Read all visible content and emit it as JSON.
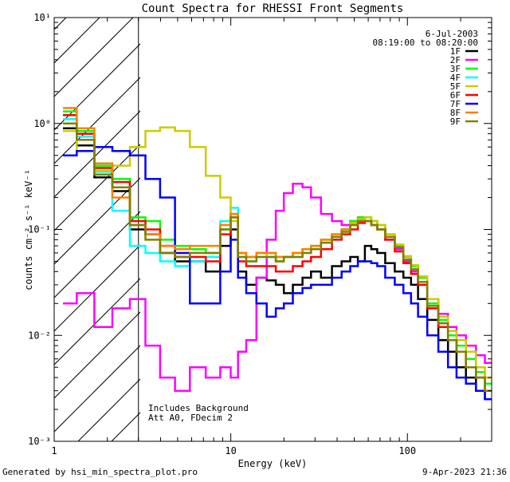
{
  "chart_data": {
    "type": "line",
    "title": "Count Spectra for RHESSI Front Segments",
    "xlabel": "Energy (keV)",
    "ylabel": "counts cm⁻² s⁻¹ keV⁻¹",
    "xscale": "log",
    "yscale": "log",
    "xlim": [
      1,
      300
    ],
    "ylim": [
      0.001,
      10
    ],
    "x_ticks": [
      "1",
      "10",
      "100"
    ],
    "y_ticks": [
      "10⁻³",
      "10⁻²",
      "10⁻¹",
      "10⁰",
      "10¹"
    ],
    "date": "6-Jul-2003",
    "time_range": "08:19:00 to 08:20:00",
    "annotations": [
      "Includes Background",
      "Att A0, FDecim 2"
    ],
    "shaded_region_keV": [
      1,
      3
    ],
    "footer_left": "Generated by hsi_min_spectra_plot.pro",
    "footer_right": "9-Apr-2023 21:36",
    "series": [
      {
        "name": "1F",
        "color": "#000000",
        "x": [
          1.2,
          1.5,
          1.9,
          2.4,
          3,
          3.6,
          4.4,
          5.3,
          6.5,
          8,
          9.5,
          10.5,
          11.5,
          13,
          15,
          17,
          19,
          21,
          24,
          27,
          30,
          35,
          40,
          45,
          50,
          55,
          60,
          65,
          70,
          80,
          90,
          100,
          110,
          120,
          140,
          160,
          180,
          200,
          230,
          260,
          290
        ],
        "y": [
          0.9,
          0.62,
          0.31,
          0.23,
          0.1,
          0.09,
          0.06,
          0.05,
          0.05,
          0.04,
          0.07,
          0.1,
          0.04,
          0.03,
          0.035,
          0.033,
          0.03,
          0.025,
          0.03,
          0.035,
          0.04,
          0.035,
          0.045,
          0.05,
          0.055,
          0.05,
          0.07,
          0.065,
          0.06,
          0.048,
          0.04,
          0.035,
          0.03,
          0.022,
          0.014,
          0.009,
          0.007,
          0.005,
          0.004,
          0.003,
          0.0025
        ]
      },
      {
        "name": "2F",
        "color": "#ff00ff",
        "x": [
          1.2,
          1.5,
          1.9,
          2.4,
          3,
          3.6,
          4.4,
          5.3,
          6.5,
          8,
          9.5,
          10.5,
          11.5,
          13,
          15,
          17,
          19,
          21,
          24,
          27,
          30,
          35,
          40,
          45,
          50,
          55,
          60,
          65,
          70,
          80,
          90,
          100,
          110,
          120,
          140,
          160,
          180,
          200,
          230,
          260,
          290
        ],
        "y": [
          0.02,
          0.025,
          0.012,
          0.018,
          0.022,
          0.008,
          0.004,
          0.003,
          0.005,
          0.004,
          0.005,
          0.004,
          0.007,
          0.009,
          0.035,
          0.08,
          0.15,
          0.22,
          0.27,
          0.25,
          0.2,
          0.14,
          0.12,
          0.11,
          0.12,
          0.13,
          0.12,
          0.11,
          0.1,
          0.08,
          0.065,
          0.05,
          0.04,
          0.03,
          0.022,
          0.016,
          0.012,
          0.01,
          0.008,
          0.0065,
          0.0055
        ]
      },
      {
        "name": "3F",
        "color": "#00ff00",
        "x": [
          1.2,
          1.5,
          1.9,
          2.4,
          3,
          3.6,
          4.4,
          5.3,
          6.5,
          8,
          9.5,
          10.5,
          11.5,
          13,
          15,
          17,
          19,
          21,
          24,
          27,
          30,
          35,
          40,
          45,
          50,
          55,
          60,
          65,
          70,
          80,
          90,
          100,
          110,
          120,
          140,
          160,
          180,
          200,
          230,
          260,
          290
        ],
        "y": [
          1.3,
          0.85,
          0.4,
          0.3,
          0.13,
          0.12,
          0.08,
          0.07,
          0.065,
          0.06,
          0.1,
          0.14,
          0.06,
          0.055,
          0.06,
          0.06,
          0.055,
          0.055,
          0.06,
          0.065,
          0.07,
          0.08,
          0.09,
          0.1,
          0.12,
          0.13,
          0.13,
          0.12,
          0.11,
          0.09,
          0.07,
          0.055,
          0.045,
          0.035,
          0.02,
          0.014,
          0.01,
          0.008,
          0.006,
          0.0045,
          0.0035
        ]
      },
      {
        "name": "4F",
        "color": "#00ffff",
        "x": [
          1.2,
          1.5,
          1.9,
          2.4,
          3,
          3.6,
          4.4,
          5.3,
          6.5,
          8,
          9.5,
          10.5,
          11.5,
          13,
          15,
          17,
          19,
          21,
          24,
          27,
          30,
          35,
          40,
          45,
          50,
          55,
          60,
          65,
          70,
          80,
          90,
          100,
          110,
          120,
          140,
          160,
          180,
          200,
          230,
          260,
          290
        ],
        "y": [
          1.1,
          0.75,
          0.35,
          0.15,
          0.07,
          0.06,
          0.05,
          0.045,
          0.05,
          0.055,
          0.12,
          0.16,
          0.055,
          0.05,
          0.055,
          0.055,
          0.05,
          0.055,
          0.055,
          0.06,
          0.065,
          0.075,
          0.085,
          0.1,
          0.11,
          0.12,
          0.12,
          0.11,
          0.1,
          0.085,
          0.068,
          0.052,
          0.042,
          0.032,
          0.019,
          0.013,
          0.009,
          0.007,
          0.005,
          0.004,
          0.003
        ]
      },
      {
        "name": "5F",
        "color": "#cccc00",
        "x": [
          1.2,
          1.5,
          1.9,
          2.4,
          3,
          3.6,
          4.4,
          5.3,
          6.5,
          8,
          9.5,
          10.5,
          11.5,
          13,
          15,
          17,
          19,
          21,
          24,
          27,
          30,
          35,
          40,
          45,
          50,
          55,
          60,
          65,
          70,
          80,
          90,
          100,
          110,
          120,
          140,
          160,
          180,
          200,
          230,
          260,
          290
        ],
        "y": [
          0.85,
          0.55,
          0.36,
          0.4,
          0.6,
          0.85,
          0.92,
          0.85,
          0.6,
          0.32,
          0.2,
          0.12,
          0.06,
          0.055,
          0.06,
          0.055,
          0.05,
          0.055,
          0.06,
          0.065,
          0.07,
          0.08,
          0.09,
          0.1,
          0.115,
          0.125,
          0.13,
          0.12,
          0.11,
          0.09,
          0.072,
          0.056,
          0.046,
          0.036,
          0.022,
          0.015,
          0.011,
          0.009,
          0.007,
          0.005,
          0.004
        ]
      },
      {
        "name": "6F",
        "color": "#ff0000",
        "x": [
          1.2,
          1.5,
          1.9,
          2.4,
          3,
          3.6,
          4.4,
          5.3,
          6.5,
          8,
          9.5,
          10.5,
          11.5,
          13,
          15,
          17,
          19,
          21,
          24,
          27,
          30,
          35,
          40,
          45,
          50,
          55,
          60,
          65,
          70,
          80,
          90,
          100,
          110,
          120,
          140,
          160,
          180,
          200,
          230,
          260,
          290
        ],
        "y": [
          1.2,
          0.8,
          0.38,
          0.28,
          0.12,
          0.1,
          0.07,
          0.055,
          0.055,
          0.05,
          0.09,
          0.13,
          0.05,
          0.045,
          0.045,
          0.045,
          0.04,
          0.04,
          0.045,
          0.05,
          0.055,
          0.065,
          0.08,
          0.09,
          0.1,
          0.115,
          0.12,
          0.11,
          0.1,
          0.08,
          0.062,
          0.048,
          0.038,
          0.03,
          0.018,
          0.012,
          0.009,
          0.007,
          0.005,
          0.004,
          0.003
        ]
      },
      {
        "name": "7F",
        "color": "#0000ff",
        "x": [
          1.2,
          1.5,
          1.9,
          2.4,
          3,
          3.6,
          4.4,
          5.3,
          6.5,
          8,
          9.5,
          10.5,
          11.5,
          13,
          15,
          17,
          19,
          21,
          24,
          27,
          30,
          35,
          40,
          45,
          50,
          55,
          60,
          65,
          70,
          80,
          90,
          100,
          110,
          120,
          140,
          160,
          180,
          200,
          230,
          260,
          290
        ],
        "y": [
          0.5,
          0.55,
          0.6,
          0.55,
          0.5,
          0.3,
          0.2,
          0.06,
          0.02,
          0.02,
          0.04,
          0.08,
          0.035,
          0.025,
          0.02,
          0.015,
          0.018,
          0.02,
          0.025,
          0.028,
          0.03,
          0.03,
          0.035,
          0.04,
          0.045,
          0.05,
          0.05,
          0.048,
          0.045,
          0.035,
          0.03,
          0.025,
          0.02,
          0.015,
          0.01,
          0.007,
          0.005,
          0.004,
          0.0035,
          0.003,
          0.0025
        ]
      },
      {
        "name": "8F",
        "color": "#ff7f00",
        "x": [
          1.2,
          1.5,
          1.9,
          2.4,
          3,
          3.6,
          4.4,
          5.3,
          6.5,
          8,
          9.5,
          10.5,
          11.5,
          13,
          15,
          17,
          19,
          21,
          24,
          27,
          30,
          35,
          40,
          45,
          50,
          55,
          60,
          65,
          70,
          80,
          90,
          100,
          110,
          120,
          140,
          160,
          180,
          200,
          230,
          260,
          290
        ],
        "y": [
          1.4,
          0.9,
          0.42,
          0.2,
          0.11,
          0.09,
          0.07,
          0.065,
          0.07,
          0.07,
          0.11,
          0.14,
          0.06,
          0.055,
          0.06,
          0.06,
          0.055,
          0.055,
          0.06,
          0.065,
          0.07,
          0.08,
          0.09,
          0.1,
          0.11,
          0.12,
          0.12,
          0.11,
          0.1,
          0.085,
          0.068,
          0.052,
          0.042,
          0.032,
          0.019,
          0.013,
          0.009,
          0.007,
          0.005,
          0.004,
          0.003
        ]
      },
      {
        "name": "9F",
        "color": "#808000",
        "x": [
          1.2,
          1.5,
          1.9,
          2.4,
          3,
          3.6,
          4.4,
          5.3,
          6.5,
          8,
          9.5,
          10.5,
          11.5,
          13,
          15,
          17,
          19,
          21,
          24,
          27,
          30,
          35,
          40,
          45,
          50,
          55,
          60,
          65,
          70,
          80,
          90,
          100,
          110,
          120,
          140,
          160,
          180,
          200,
          230,
          260,
          290
        ],
        "y": [
          1.0,
          0.7,
          0.33,
          0.25,
          0.11,
          0.08,
          0.06,
          0.055,
          0.06,
          0.06,
          0.1,
          0.13,
          0.055,
          0.05,
          0.055,
          0.055,
          0.05,
          0.055,
          0.055,
          0.06,
          0.065,
          0.075,
          0.085,
          0.095,
          0.11,
          0.12,
          0.12,
          0.11,
          0.1,
          0.085,
          0.068,
          0.052,
          0.042,
          0.032,
          0.019,
          0.013,
          0.009,
          0.007,
          0.005,
          0.004,
          0.003
        ]
      }
    ]
  }
}
